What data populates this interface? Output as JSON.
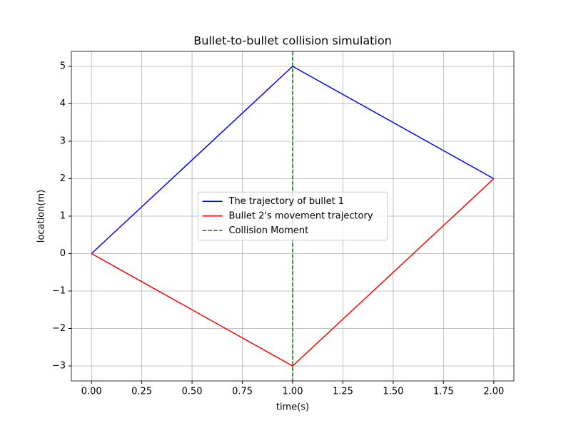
{
  "chart_data": {
    "type": "line",
    "title": "Bullet-to-bullet collision simulation",
    "xlabel": "time(s)",
    "ylabel": "location(m)",
    "x": [
      0,
      1,
      2
    ],
    "series": [
      {
        "name": "The trajectory of bullet 1",
        "color": "#0000ff",
        "values": [
          0,
          5,
          2
        ]
      },
      {
        "name": "Bullet 2's movement trajectory",
        "color": "#ff0000",
        "values": [
          0,
          -3,
          2
        ]
      }
    ],
    "vlines": [
      {
        "name": "Collision Moment",
        "color": "#008000",
        "x": 1,
        "linestyle": "dashed"
      }
    ],
    "xlim": [
      -0.1,
      2.1
    ],
    "xticks": [
      {
        "value": 0,
        "label": "0.00"
      },
      {
        "value": 0.25,
        "label": "0.25"
      },
      {
        "value": 0.5,
        "label": "0.50"
      },
      {
        "value": 0.75,
        "label": "0.75"
      },
      {
        "value": 1,
        "label": "1.00"
      },
      {
        "value": 1.25,
        "label": "1.25"
      },
      {
        "value": 1.5,
        "label": "1.50"
      },
      {
        "value": 1.75,
        "label": "1.75"
      },
      {
        "value": 2,
        "label": "2.00"
      }
    ],
    "ylim": [
      -3.4,
      5.4
    ],
    "yticks": [
      {
        "value": -3,
        "label": "−3"
      },
      {
        "value": -2,
        "label": "−2"
      },
      {
        "value": -1,
        "label": "−1"
      },
      0,
      1,
      2,
      3,
      4,
      5
    ],
    "grid": true,
    "legend": "center"
  }
}
